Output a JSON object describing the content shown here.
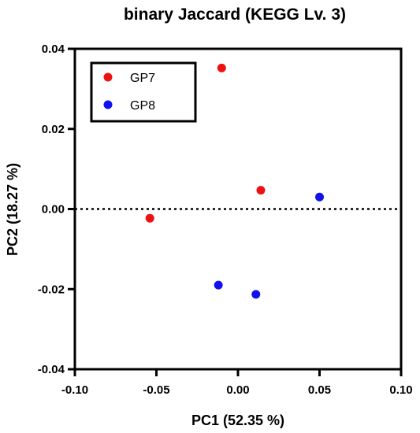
{
  "chart_data": {
    "type": "scatter",
    "title": "binary Jaccard (KEGG Lv. 3)",
    "xlabel": "PC1 (52.35 %)",
    "ylabel": "PC2 (18.27 %)",
    "xlim": [
      -0.1,
      0.1
    ],
    "ylim": [
      -0.04,
      0.04
    ],
    "x_ticks": [
      "-0.10",
      "-0.05",
      "0.00",
      "0.05",
      "0.10"
    ],
    "x_tick_values": [
      -0.1,
      -0.05,
      0.0,
      0.05,
      0.1
    ],
    "y_ticks": [
      "0.04",
      "0.02",
      "0.00",
      "-0.02",
      "-0.04"
    ],
    "y_tick_values": [
      0.04,
      0.02,
      0.0,
      -0.02,
      -0.04
    ],
    "grid": false,
    "reference_line": {
      "axis": "y",
      "value": 0.0,
      "style": "dotted"
    },
    "legend_position": "top-left",
    "series": [
      {
        "name": "GP7",
        "color": "#ee1111",
        "points": [
          {
            "x": -0.01,
            "y": 0.0352
          },
          {
            "x": 0.014,
            "y": 0.0047
          },
          {
            "x": -0.054,
            "y": -0.0023
          }
        ]
      },
      {
        "name": "GP8",
        "color": "#1111ee",
        "points": [
          {
            "x": 0.05,
            "y": 0.003
          },
          {
            "x": -0.012,
            "y": -0.019
          },
          {
            "x": 0.011,
            "y": -0.0213
          }
        ]
      }
    ]
  }
}
